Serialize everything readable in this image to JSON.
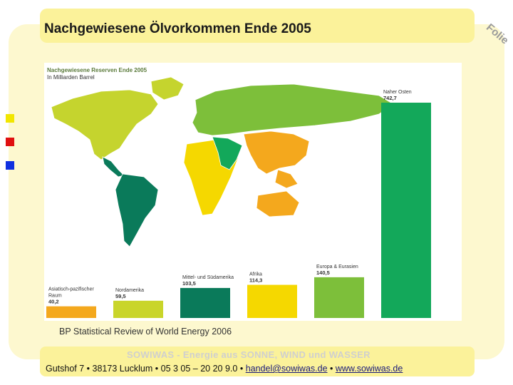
{
  "slide": {
    "title": "Nachgewiesene Ölvorkommen Ende 2005",
    "folie_label": "Folie",
    "markers": [
      "#f2e600",
      "#e01010",
      "#1030e0"
    ]
  },
  "source_note": "BP Statistical Review of World Energy 2006",
  "footer": {
    "tagline": "SOWIWAS - Energie aus SONNE, WIND und WASSER",
    "address_prefix": "Gutshof 7 • 38173 Lucklum • 05 3 05 – 20 20 9.0 • ",
    "email": "handel@sowiwas.de",
    "separator": " • ",
    "website": "www.sowiwas.de"
  },
  "chart_data": {
    "type": "bar",
    "title": "Nachgewiesene Reserven Ende 2005",
    "unit": "In Milliarden Barrel",
    "categories": [
      "Asiatisch-pazifischer Raum",
      "Nordamerika",
      "Mittel- und Südamerika",
      "Afrika",
      "Europa & Eurasien",
      "Naher Osten"
    ],
    "label_lines": [
      [
        "Asiatisch-pazifischer",
        "Raum"
      ],
      [
        "Nordamerika"
      ],
      [
        "Mittel- und Südamerika"
      ],
      [
        "Afrika"
      ],
      [
        "Europa & Eurasien"
      ],
      [
        "Naher Osten"
      ]
    ],
    "values": [
      40.2,
      59.5,
      103.5,
      114.3,
      140.5,
      742.7
    ],
    "value_labels": [
      "40,2",
      "59,5",
      "103,5",
      "114,3",
      "140,5",
      "742,7"
    ],
    "colors": [
      "#f4a81d",
      "#c9d52a",
      "#0a7a5a",
      "#f5d800",
      "#7dbf3a",
      "#13a85a"
    ],
    "map_colors": {
      "north_america": "#c5d42e",
      "south_america": "#0a7a5a",
      "europe_eurasia": "#7dbf3a",
      "africa": "#f5d800",
      "middle_east": "#13a85a",
      "asia_pacific": "#f4a81d"
    }
  }
}
